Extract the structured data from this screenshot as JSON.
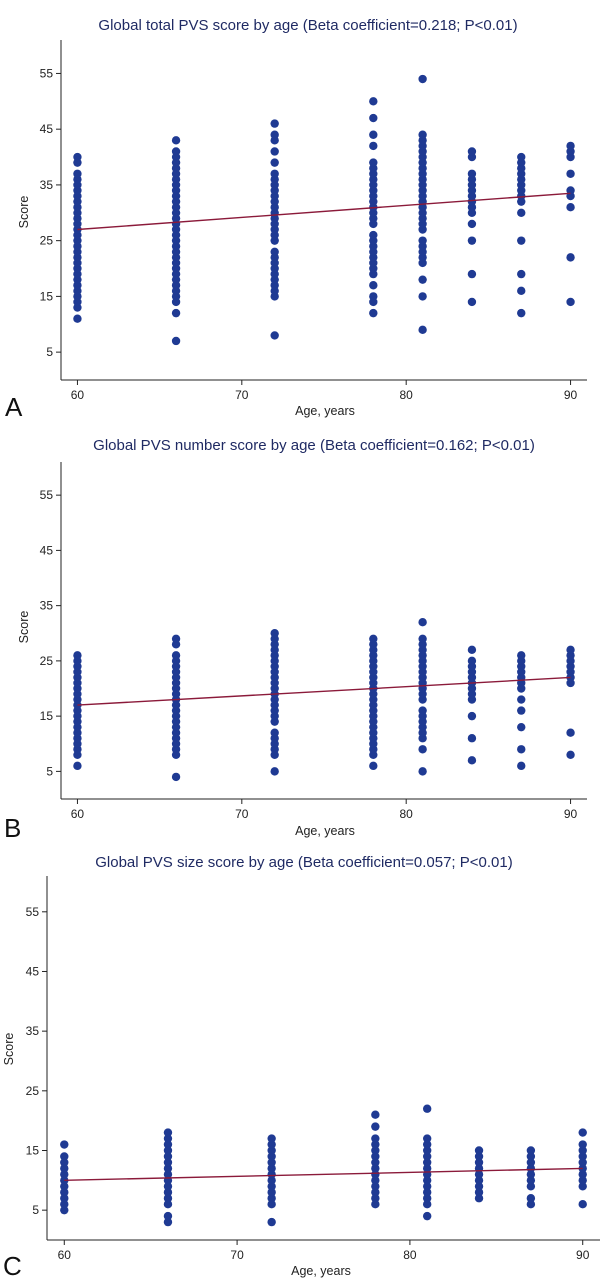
{
  "panels": [
    {
      "id": "A",
      "title": "Global total PVS score by age (Beta coefficient=0.218; P<0.01)",
      "ylabel": "Score",
      "xlabel": "Age, years"
    },
    {
      "id": "B",
      "title": "Global PVS number score by age (Beta coefficient=0.162; P<0.01)",
      "ylabel": "Score",
      "xlabel": "Age, years"
    },
    {
      "id": "C",
      "title": "Global PVS size score by age (Beta coefficient=0.057; P<0.01)",
      "ylabel": "Score",
      "xlabel": "Age, years"
    }
  ],
  "colors": {
    "points": "#1f3a93",
    "fit_line": "#8b1a3a",
    "title": "#1f2a63"
  },
  "chart_data": [
    {
      "type": "scatter",
      "title": "Global total PVS score by age (Beta coefficient=0.218; P<0.01)",
      "xlabel": "Age, years",
      "ylabel": "Score",
      "xlim": [
        59,
        91
      ],
      "ylim": [
        0,
        61
      ],
      "xticks": [
        60,
        70,
        80,
        90
      ],
      "yticks": [
        5,
        15,
        25,
        35,
        45,
        55
      ],
      "fit_line": {
        "x": [
          60,
          90
        ],
        "y": [
          27,
          33.5
        ]
      },
      "groups": [
        {
          "x": 60,
          "y": [
            11,
            13,
            14,
            15,
            16,
            17,
            18,
            19,
            20,
            21,
            22,
            23,
            24,
            25,
            26,
            27,
            28,
            29,
            30,
            31,
            32,
            33,
            34,
            35,
            36,
            37,
            39,
            40
          ]
        },
        {
          "x": 66,
          "y": [
            7,
            12,
            14,
            15,
            16,
            17,
            18,
            19,
            20,
            21,
            22,
            23,
            24,
            25,
            26,
            27,
            28,
            29,
            30,
            31,
            32,
            33,
            34,
            35,
            36,
            37,
            38,
            39,
            40,
            41,
            43
          ]
        },
        {
          "x": 72,
          "y": [
            8,
            15,
            16,
            17,
            18,
            19,
            20,
            21,
            22,
            23,
            25,
            26,
            27,
            28,
            29,
            30,
            31,
            32,
            33,
            34,
            35,
            36,
            37,
            39,
            41,
            43,
            44,
            46
          ]
        },
        {
          "x": 78,
          "y": [
            12,
            14,
            15,
            17,
            19,
            20,
            21,
            22,
            23,
            24,
            25,
            26,
            28,
            29,
            30,
            31,
            32,
            33,
            34,
            35,
            36,
            37,
            38,
            39,
            42,
            44,
            47,
            50
          ]
        },
        {
          "x": 81,
          "y": [
            9,
            15,
            18,
            21,
            22,
            23,
            24,
            25,
            27,
            28,
            29,
            30,
            31,
            32,
            33,
            34,
            35,
            36,
            37,
            38,
            39,
            40,
            41,
            42,
            43,
            44,
            54
          ]
        },
        {
          "x": 84,
          "y": [
            14,
            19,
            25,
            28,
            30,
            31,
            32,
            33,
            34,
            35,
            36,
            37,
            40,
            41
          ]
        },
        {
          "x": 87,
          "y": [
            12,
            16,
            19,
            25,
            30,
            32,
            33,
            34,
            35,
            36,
            37,
            38,
            39,
            40
          ]
        },
        {
          "x": 90,
          "y": [
            14,
            22,
            31,
            33,
            34,
            37,
            40,
            41,
            42
          ]
        }
      ]
    },
    {
      "type": "scatter",
      "title": "Global PVS number score by age (Beta coefficient=0.162; P<0.01)",
      "xlabel": "Age, years",
      "ylabel": "Score",
      "xlim": [
        59,
        91
      ],
      "ylim": [
        0,
        61
      ],
      "xticks": [
        60,
        70,
        80,
        90
      ],
      "yticks": [
        5,
        15,
        25,
        35,
        45,
        55
      ],
      "fit_line": {
        "x": [
          60,
          90
        ],
        "y": [
          17,
          22
        ]
      },
      "groups": [
        {
          "x": 60,
          "y": [
            6,
            8,
            9,
            10,
            11,
            12,
            13,
            14,
            15,
            16,
            17,
            18,
            19,
            20,
            21,
            22,
            23,
            24,
            25,
            26
          ]
        },
        {
          "x": 66,
          "y": [
            4,
            8,
            9,
            10,
            11,
            12,
            13,
            14,
            15,
            16,
            17,
            18,
            19,
            20,
            21,
            22,
            23,
            24,
            25,
            26,
            28,
            29
          ]
        },
        {
          "x": 72,
          "y": [
            5,
            8,
            9,
            10,
            11,
            12,
            14,
            15,
            16,
            17,
            18,
            19,
            20,
            21,
            22,
            23,
            24,
            25,
            26,
            27,
            28,
            29,
            30
          ]
        },
        {
          "x": 78,
          "y": [
            6,
            8,
            9,
            10,
            11,
            12,
            13,
            14,
            15,
            16,
            17,
            18,
            19,
            20,
            21,
            22,
            23,
            24,
            25,
            26,
            27,
            28,
            29
          ]
        },
        {
          "x": 81,
          "y": [
            5,
            9,
            11,
            12,
            13,
            14,
            15,
            16,
            18,
            19,
            20,
            21,
            22,
            23,
            24,
            25,
            26,
            27,
            28,
            29,
            32
          ]
        },
        {
          "x": 84,
          "y": [
            7,
            11,
            15,
            18,
            19,
            20,
            21,
            22,
            23,
            24,
            25,
            27
          ]
        },
        {
          "x": 87,
          "y": [
            6,
            9,
            13,
            16,
            18,
            20,
            21,
            22,
            23,
            24,
            25,
            26
          ]
        },
        {
          "x": 90,
          "y": [
            8,
            12,
            21,
            22,
            23,
            24,
            25,
            26,
            27
          ]
        }
      ]
    },
    {
      "type": "scatter",
      "title": "Global PVS size score by age (Beta coefficient=0.057; P<0.01)",
      "xlabel": "Age, years",
      "ylabel": "Score",
      "xlim": [
        59,
        91
      ],
      "ylim": [
        0,
        61
      ],
      "xticks": [
        60,
        70,
        80,
        90
      ],
      "yticks": [
        5,
        15,
        25,
        35,
        45,
        55
      ],
      "fit_line": {
        "x": [
          60,
          90
        ],
        "y": [
          10,
          12
        ]
      },
      "groups": [
        {
          "x": 60,
          "y": [
            5,
            6,
            7,
            8,
            9,
            10,
            11,
            12,
            13,
            14,
            16
          ]
        },
        {
          "x": 66,
          "y": [
            3,
            4,
            6,
            7,
            8,
            9,
            10,
            11,
            12,
            13,
            14,
            15,
            16,
            17,
            18
          ]
        },
        {
          "x": 72,
          "y": [
            3,
            6,
            7,
            8,
            9,
            10,
            11,
            12,
            13,
            14,
            15,
            16,
            17
          ]
        },
        {
          "x": 78,
          "y": [
            6,
            7,
            8,
            9,
            10,
            11,
            12,
            13,
            14,
            15,
            16,
            17,
            19,
            21
          ]
        },
        {
          "x": 81,
          "y": [
            4,
            6,
            7,
            8,
            9,
            10,
            11,
            12,
            13,
            14,
            15,
            16,
            17,
            22
          ]
        },
        {
          "x": 84,
          "y": [
            7,
            8,
            9,
            10,
            11,
            12,
            13,
            14,
            15
          ]
        },
        {
          "x": 87,
          "y": [
            6,
            7,
            9,
            10,
            11,
            12,
            13,
            14,
            15
          ]
        },
        {
          "x": 90,
          "y": [
            6,
            9,
            10,
            11,
            12,
            13,
            14,
            15,
            16,
            18
          ]
        }
      ]
    }
  ]
}
